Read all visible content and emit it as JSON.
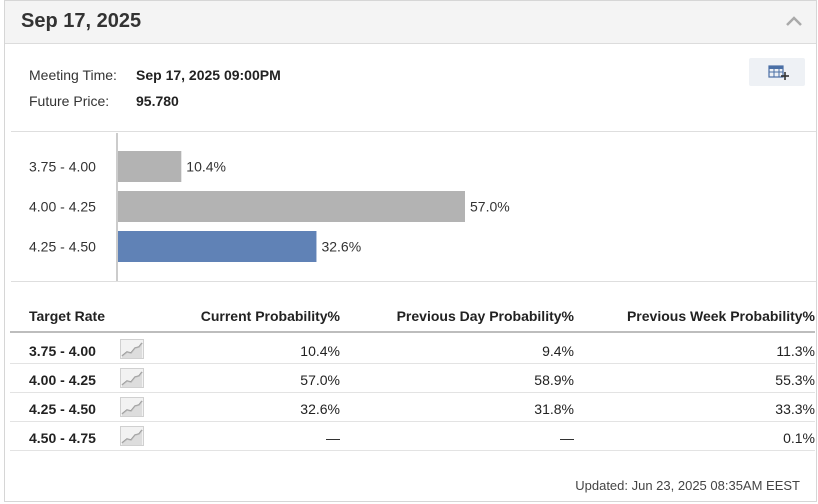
{
  "header": {
    "title": "Sep 17, 2025"
  },
  "meeting": {
    "time_label": "Meeting Time:",
    "time_value": "Sep 17, 2025 09:00PM",
    "price_label": "Future Price:",
    "price_value": "95.780"
  },
  "icons": {
    "collapse": "chevron-up-icon",
    "export": "table-add-icon",
    "sparkline": "sparkline-icon"
  },
  "colors": {
    "bar_default": "#b3b3b3",
    "bar_current": "#6082b6"
  },
  "chart_data": {
    "type": "bar",
    "orientation": "horizontal",
    "categories": [
      "3.75 - 4.00",
      "4.00 - 4.25",
      "4.25 - 4.50"
    ],
    "values": [
      10.4,
      57.0,
      32.6
    ],
    "value_labels": [
      "10.4%",
      "57.0%",
      "32.6%"
    ],
    "highlight_index": 2,
    "xlim": [
      0,
      60
    ],
    "grid": false,
    "title": "",
    "xlabel": "",
    "ylabel": ""
  },
  "table": {
    "headers": [
      "Target Rate",
      "Current Probability%",
      "Previous Day Probability%",
      "Previous Week Probability%"
    ],
    "rows": [
      {
        "rate": "3.75 - 4.00",
        "current": "10.4%",
        "prev_day": "9.4%",
        "prev_week": "11.3%"
      },
      {
        "rate": "4.00 - 4.25",
        "current": "57.0%",
        "prev_day": "58.9%",
        "prev_week": "55.3%"
      },
      {
        "rate": "4.25 - 4.50",
        "current": "32.6%",
        "prev_day": "31.8%",
        "prev_week": "33.3%"
      },
      {
        "rate": "4.50 - 4.75",
        "current": "—",
        "prev_day": "—",
        "prev_week": "0.1%"
      }
    ]
  },
  "footer": {
    "updated": "Updated: Jun 23, 2025 08:35AM EEST"
  }
}
